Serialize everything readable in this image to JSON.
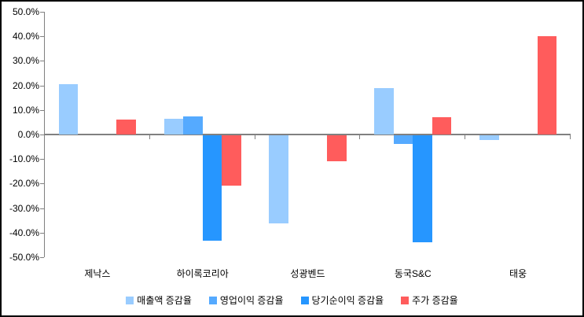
{
  "chart_data": {
    "type": "bar",
    "title": "",
    "xlabel": "",
    "ylabel": "",
    "categories": [
      "제낙스",
      "하이록코리아",
      "성광벤드",
      "동국S&C",
      "태웅"
    ],
    "series": [
      {
        "name": "매출액 증감율",
        "color": "#99CCFF",
        "values": [
          20.5,
          6.5,
          -36.0,
          19.0,
          -2.0
        ]
      },
      {
        "name": "영업이익 증감율",
        "color": "#55AAFF",
        "values": [
          0,
          7.5,
          0,
          -3.5,
          0
        ]
      },
      {
        "name": "당기순이익 증감율",
        "color": "#2696FF",
        "values": [
          0,
          -43.0,
          0,
          -43.5,
          0
        ]
      },
      {
        "name": "주가 증감율",
        "color": "#FF5C5C",
        "values": [
          6.0,
          -20.5,
          -10.5,
          7.0,
          40.0
        ]
      }
    ],
    "ylim": [
      -50,
      50
    ],
    "yticks": [
      {
        "value": 50,
        "label": "50.0%"
      },
      {
        "value": 40,
        "label": "40.0%"
      },
      {
        "value": 30,
        "label": "30.0%"
      },
      {
        "value": 20,
        "label": "20.0%"
      },
      {
        "value": 10,
        "label": "10.0%"
      },
      {
        "value": 0,
        "label": "0.0%"
      },
      {
        "value": -10,
        "label": "-10.0%"
      },
      {
        "value": -20,
        "label": "-20.0%"
      },
      {
        "value": -30,
        "label": "-30.0%"
      },
      {
        "value": -40,
        "label": "-40.0%"
      },
      {
        "value": -50,
        "label": "-50.0%"
      }
    ],
    "grid": false,
    "legend_position": "bottom",
    "axis_color": "#808080",
    "text_color": "#000000",
    "background_color": "#FFFFFF",
    "border_color": "#000000"
  }
}
